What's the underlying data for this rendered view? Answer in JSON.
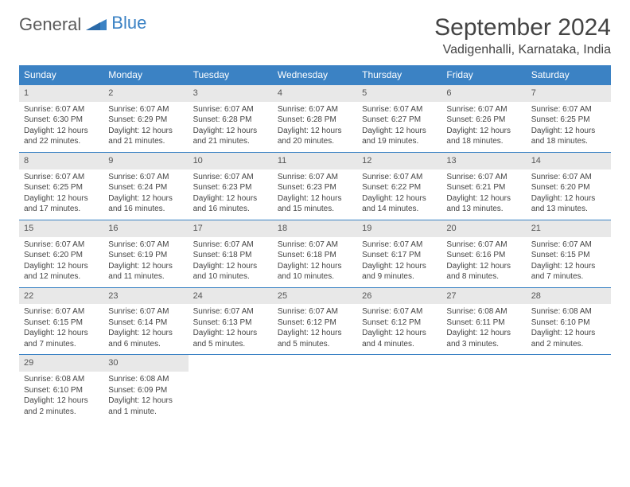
{
  "brand": {
    "part1": "General",
    "part2": "Blue"
  },
  "title": "September 2024",
  "location": "Vadigenhalli, Karnataka, India",
  "colors": {
    "header_bg": "#3b82c4",
    "daynum_bg": "#e8e8e8",
    "rule": "#3b82c4",
    "text": "#444444",
    "background": "#ffffff"
  },
  "day_headers": [
    "Sunday",
    "Monday",
    "Tuesday",
    "Wednesday",
    "Thursday",
    "Friday",
    "Saturday"
  ],
  "weeks": [
    [
      {
        "n": "1",
        "sunrise": "Sunrise: 6:07 AM",
        "sunset": "Sunset: 6:30 PM",
        "day": "Daylight: 12 hours and 22 minutes."
      },
      {
        "n": "2",
        "sunrise": "Sunrise: 6:07 AM",
        "sunset": "Sunset: 6:29 PM",
        "day": "Daylight: 12 hours and 21 minutes."
      },
      {
        "n": "3",
        "sunrise": "Sunrise: 6:07 AM",
        "sunset": "Sunset: 6:28 PM",
        "day": "Daylight: 12 hours and 21 minutes."
      },
      {
        "n": "4",
        "sunrise": "Sunrise: 6:07 AM",
        "sunset": "Sunset: 6:28 PM",
        "day": "Daylight: 12 hours and 20 minutes."
      },
      {
        "n": "5",
        "sunrise": "Sunrise: 6:07 AM",
        "sunset": "Sunset: 6:27 PM",
        "day": "Daylight: 12 hours and 19 minutes."
      },
      {
        "n": "6",
        "sunrise": "Sunrise: 6:07 AM",
        "sunset": "Sunset: 6:26 PM",
        "day": "Daylight: 12 hours and 18 minutes."
      },
      {
        "n": "7",
        "sunrise": "Sunrise: 6:07 AM",
        "sunset": "Sunset: 6:25 PM",
        "day": "Daylight: 12 hours and 18 minutes."
      }
    ],
    [
      {
        "n": "8",
        "sunrise": "Sunrise: 6:07 AM",
        "sunset": "Sunset: 6:25 PM",
        "day": "Daylight: 12 hours and 17 minutes."
      },
      {
        "n": "9",
        "sunrise": "Sunrise: 6:07 AM",
        "sunset": "Sunset: 6:24 PM",
        "day": "Daylight: 12 hours and 16 minutes."
      },
      {
        "n": "10",
        "sunrise": "Sunrise: 6:07 AM",
        "sunset": "Sunset: 6:23 PM",
        "day": "Daylight: 12 hours and 16 minutes."
      },
      {
        "n": "11",
        "sunrise": "Sunrise: 6:07 AM",
        "sunset": "Sunset: 6:23 PM",
        "day": "Daylight: 12 hours and 15 minutes."
      },
      {
        "n": "12",
        "sunrise": "Sunrise: 6:07 AM",
        "sunset": "Sunset: 6:22 PM",
        "day": "Daylight: 12 hours and 14 minutes."
      },
      {
        "n": "13",
        "sunrise": "Sunrise: 6:07 AM",
        "sunset": "Sunset: 6:21 PM",
        "day": "Daylight: 12 hours and 13 minutes."
      },
      {
        "n": "14",
        "sunrise": "Sunrise: 6:07 AM",
        "sunset": "Sunset: 6:20 PM",
        "day": "Daylight: 12 hours and 13 minutes."
      }
    ],
    [
      {
        "n": "15",
        "sunrise": "Sunrise: 6:07 AM",
        "sunset": "Sunset: 6:20 PM",
        "day": "Daylight: 12 hours and 12 minutes."
      },
      {
        "n": "16",
        "sunrise": "Sunrise: 6:07 AM",
        "sunset": "Sunset: 6:19 PM",
        "day": "Daylight: 12 hours and 11 minutes."
      },
      {
        "n": "17",
        "sunrise": "Sunrise: 6:07 AM",
        "sunset": "Sunset: 6:18 PM",
        "day": "Daylight: 12 hours and 10 minutes."
      },
      {
        "n": "18",
        "sunrise": "Sunrise: 6:07 AM",
        "sunset": "Sunset: 6:18 PM",
        "day": "Daylight: 12 hours and 10 minutes."
      },
      {
        "n": "19",
        "sunrise": "Sunrise: 6:07 AM",
        "sunset": "Sunset: 6:17 PM",
        "day": "Daylight: 12 hours and 9 minutes."
      },
      {
        "n": "20",
        "sunrise": "Sunrise: 6:07 AM",
        "sunset": "Sunset: 6:16 PM",
        "day": "Daylight: 12 hours and 8 minutes."
      },
      {
        "n": "21",
        "sunrise": "Sunrise: 6:07 AM",
        "sunset": "Sunset: 6:15 PM",
        "day": "Daylight: 12 hours and 7 minutes."
      }
    ],
    [
      {
        "n": "22",
        "sunrise": "Sunrise: 6:07 AM",
        "sunset": "Sunset: 6:15 PM",
        "day": "Daylight: 12 hours and 7 minutes."
      },
      {
        "n": "23",
        "sunrise": "Sunrise: 6:07 AM",
        "sunset": "Sunset: 6:14 PM",
        "day": "Daylight: 12 hours and 6 minutes."
      },
      {
        "n": "24",
        "sunrise": "Sunrise: 6:07 AM",
        "sunset": "Sunset: 6:13 PM",
        "day": "Daylight: 12 hours and 5 minutes."
      },
      {
        "n": "25",
        "sunrise": "Sunrise: 6:07 AM",
        "sunset": "Sunset: 6:12 PM",
        "day": "Daylight: 12 hours and 5 minutes."
      },
      {
        "n": "26",
        "sunrise": "Sunrise: 6:07 AM",
        "sunset": "Sunset: 6:12 PM",
        "day": "Daylight: 12 hours and 4 minutes."
      },
      {
        "n": "27",
        "sunrise": "Sunrise: 6:08 AM",
        "sunset": "Sunset: 6:11 PM",
        "day": "Daylight: 12 hours and 3 minutes."
      },
      {
        "n": "28",
        "sunrise": "Sunrise: 6:08 AM",
        "sunset": "Sunset: 6:10 PM",
        "day": "Daylight: 12 hours and 2 minutes."
      }
    ],
    [
      {
        "n": "29",
        "sunrise": "Sunrise: 6:08 AM",
        "sunset": "Sunset: 6:10 PM",
        "day": "Daylight: 12 hours and 2 minutes."
      },
      {
        "n": "30",
        "sunrise": "Sunrise: 6:08 AM",
        "sunset": "Sunset: 6:09 PM",
        "day": "Daylight: 12 hours and 1 minute."
      },
      null,
      null,
      null,
      null,
      null
    ]
  ]
}
